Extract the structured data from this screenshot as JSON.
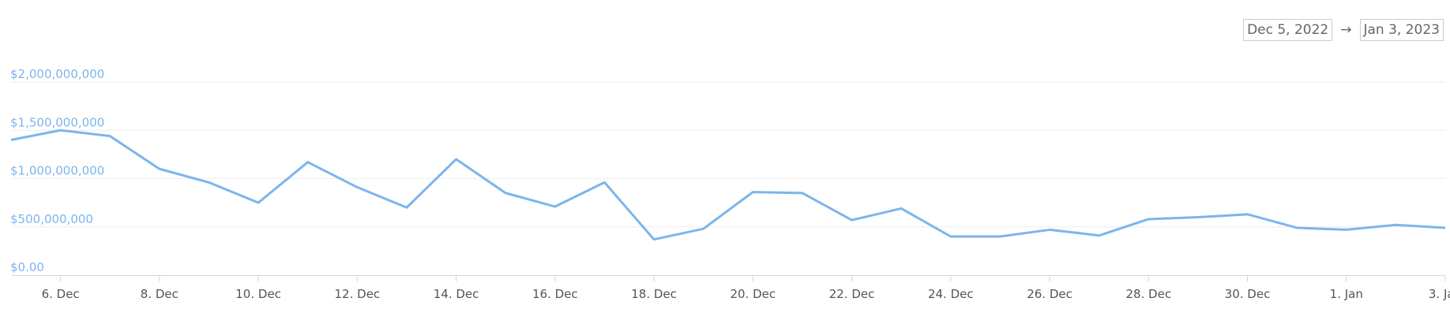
{
  "range": {
    "start": "Dec 5, 2022",
    "arrow": "→",
    "end": "Jan 3, 2023"
  },
  "chart_data": {
    "type": "line",
    "x": [
      "2022-12-05",
      "2022-12-06",
      "2022-12-07",
      "2022-12-08",
      "2022-12-09",
      "2022-12-10",
      "2022-12-11",
      "2022-12-12",
      "2022-12-13",
      "2022-12-14",
      "2022-12-15",
      "2022-12-16",
      "2022-12-17",
      "2022-12-18",
      "2022-12-19",
      "2022-12-20",
      "2022-12-21",
      "2022-12-22",
      "2022-12-23",
      "2022-12-24",
      "2022-12-25",
      "2022-12-26",
      "2022-12-27",
      "2022-12-28",
      "2022-12-29",
      "2022-12-30",
      "2022-12-31",
      "2023-01-01",
      "2023-01-02",
      "2023-01-03"
    ],
    "series": [
      {
        "color": "#7cb5ec",
        "values": [
          1400000000,
          1500000000,
          1440000000,
          1100000000,
          960000000,
          750000000,
          1170000000,
          910000000,
          700000000,
          1200000000,
          850000000,
          710000000,
          960000000,
          370000000,
          480000000,
          860000000,
          850000000,
          570000000,
          690000000,
          400000000,
          400000000,
          470000000,
          410000000,
          580000000,
          600000000,
          630000000,
          490000000,
          470000000,
          520000000,
          490000000
        ]
      }
    ],
    "xlim": [
      "2022-12-05",
      "2023-01-03"
    ],
    "xticks": [
      {
        "value": "2022-12-06",
        "label": "6. Dec"
      },
      {
        "value": "2022-12-08",
        "label": "8. Dec"
      },
      {
        "value": "2022-12-10",
        "label": "10. Dec"
      },
      {
        "value": "2022-12-12",
        "label": "12. Dec"
      },
      {
        "value": "2022-12-14",
        "label": "14. Dec"
      },
      {
        "value": "2022-12-16",
        "label": "16. Dec"
      },
      {
        "value": "2022-12-18",
        "label": "18. Dec"
      },
      {
        "value": "2022-12-20",
        "label": "20. Dec"
      },
      {
        "value": "2022-12-22",
        "label": "22. Dec"
      },
      {
        "value": "2022-12-24",
        "label": "24. Dec"
      },
      {
        "value": "2022-12-26",
        "label": "26. Dec"
      },
      {
        "value": "2022-12-28",
        "label": "28. Dec"
      },
      {
        "value": "2022-12-30",
        "label": "30. Dec"
      },
      {
        "value": "2023-01-01",
        "label": "1. Jan"
      },
      {
        "value": "2023-01-03",
        "label": "3. Jan"
      }
    ],
    "ylim": [
      0,
      2000000000
    ],
    "yticks": [
      {
        "value": 0,
        "label": "$0.00"
      },
      {
        "value": 500000000,
        "label": "$500,000,000"
      },
      {
        "value": 1000000000,
        "label": "$1,000,000,000"
      },
      {
        "value": 1500000000,
        "label": "$1,500,000,000"
      },
      {
        "value": 2000000000,
        "label": "$2,000,000,000"
      }
    ],
    "grid": true
  }
}
